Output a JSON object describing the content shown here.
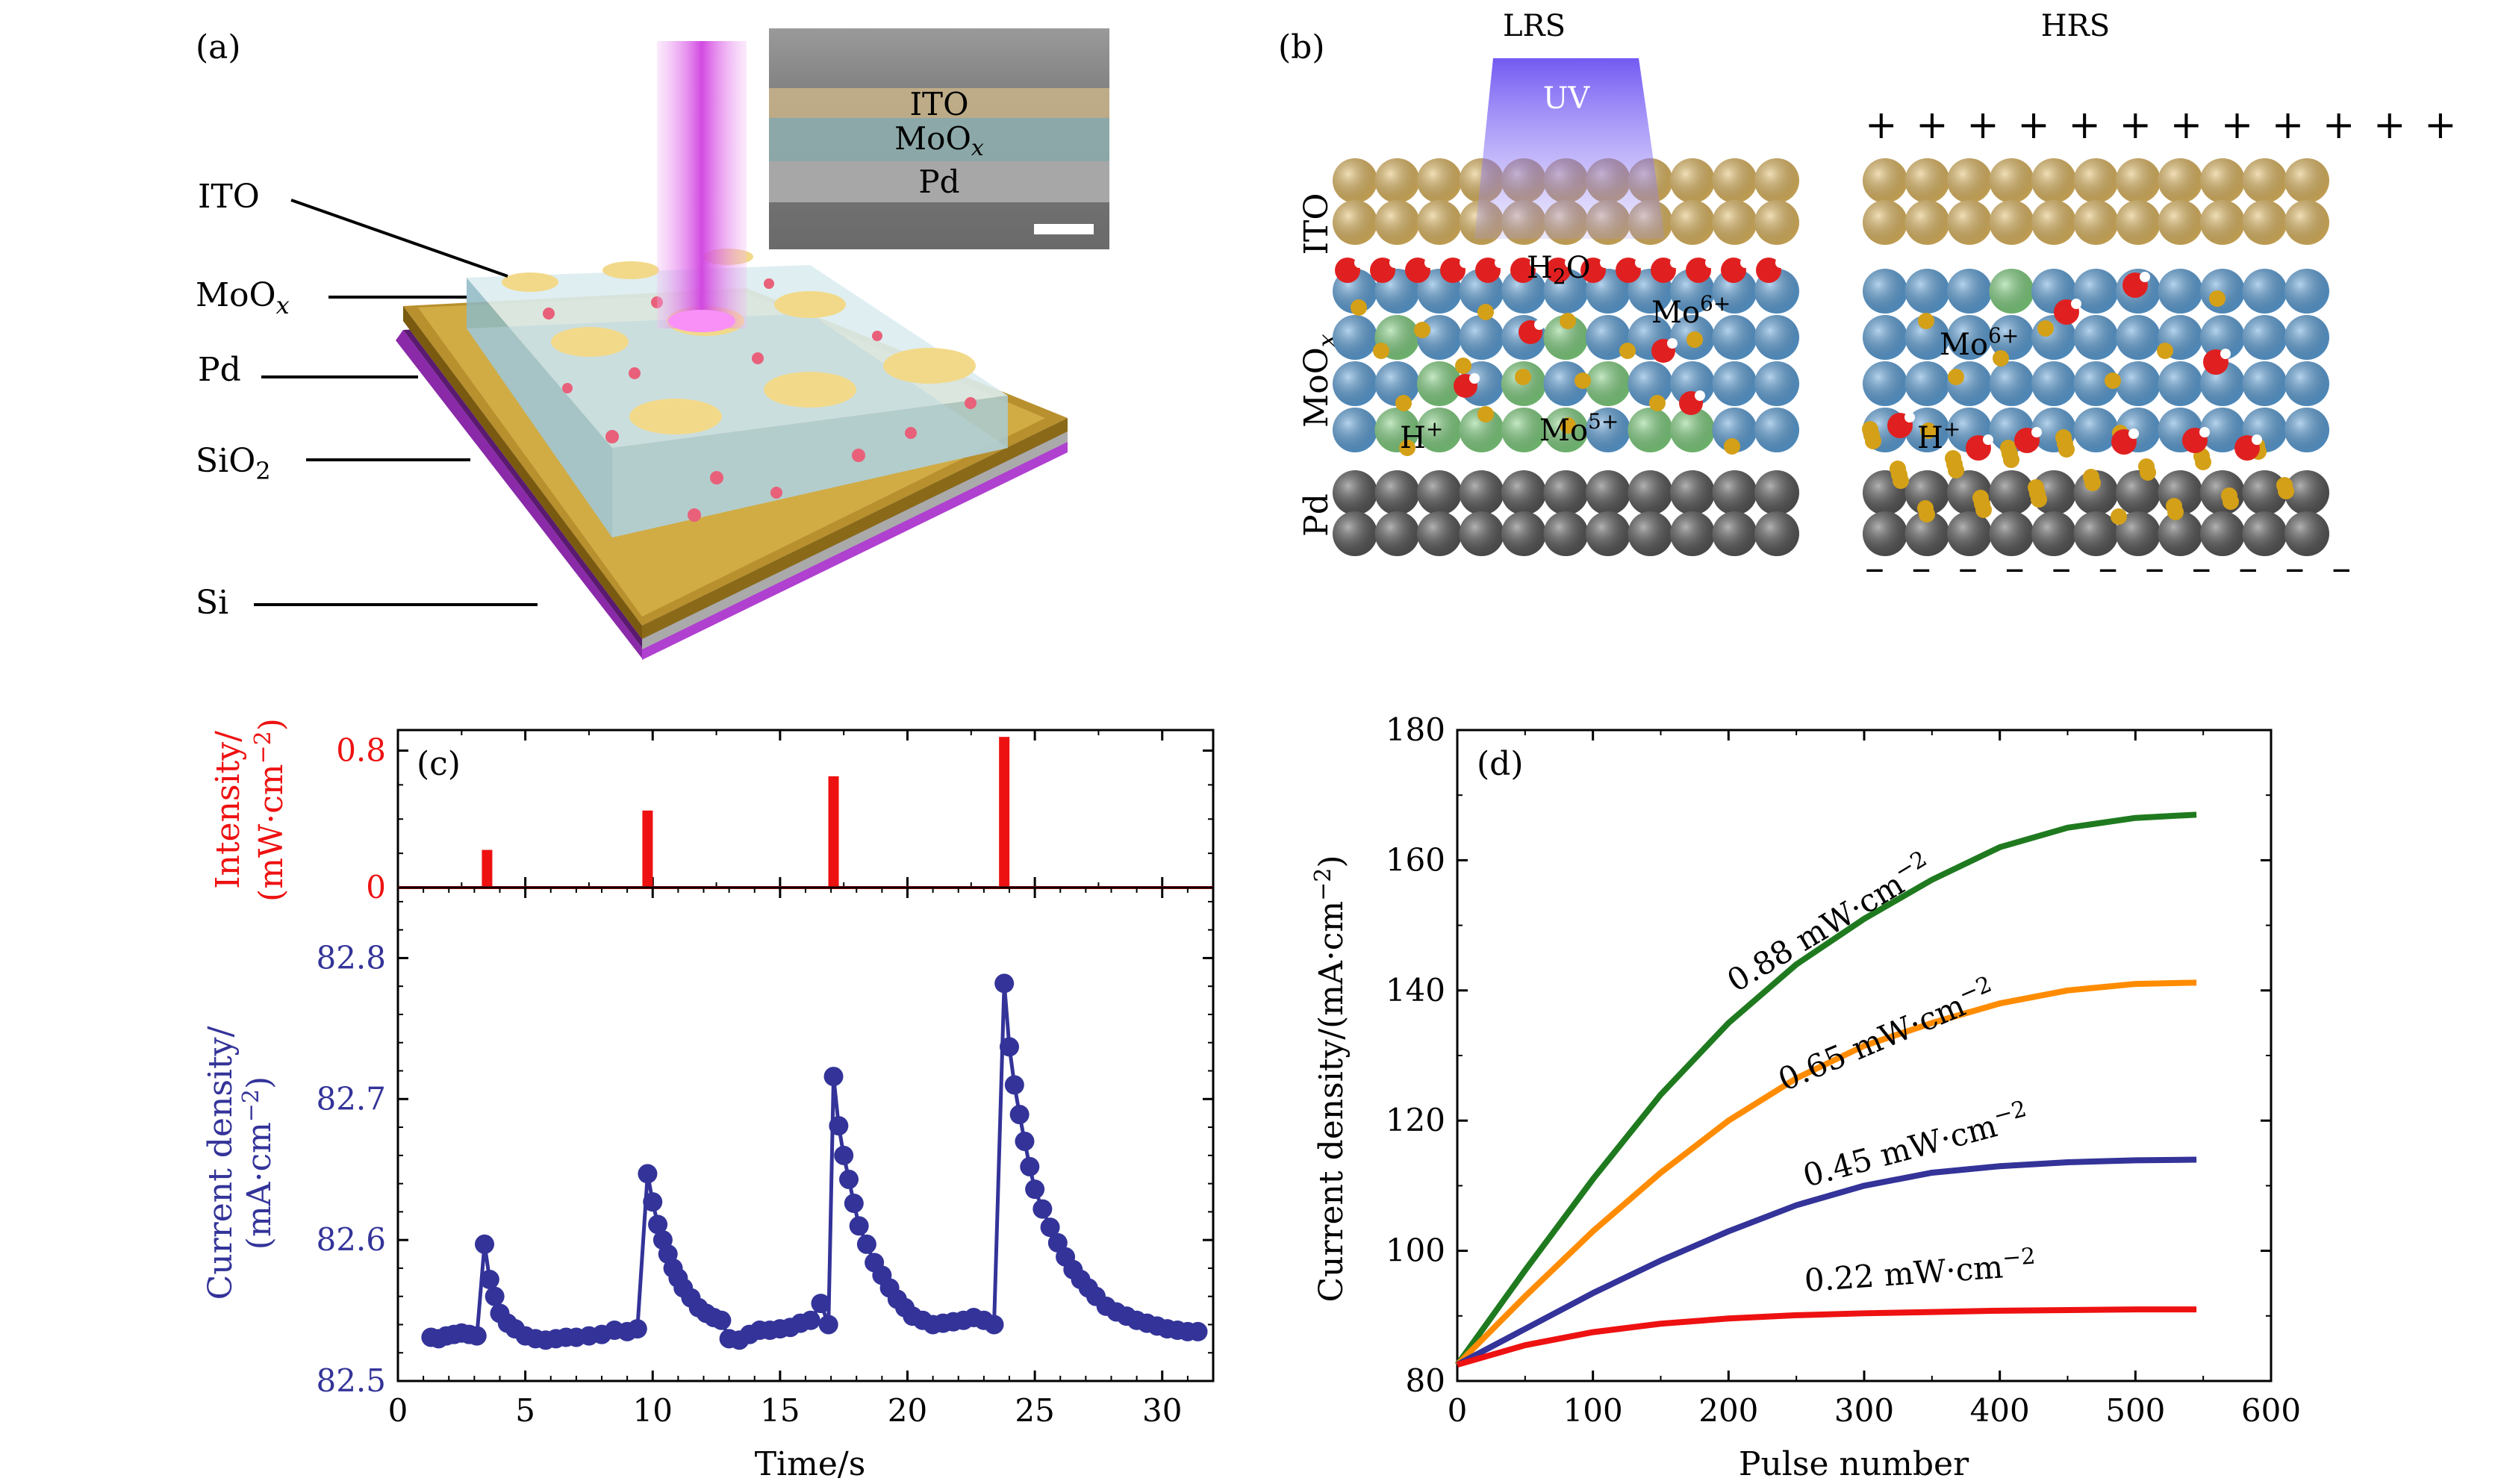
{
  "panel_a": {
    "label": "(a)",
    "layers": [
      "ITO",
      "MoO",
      "Pd",
      "SiO",
      "Si"
    ],
    "layer_subscripts": [
      "",
      "x",
      "",
      "2",
      ""
    ],
    "inset": {
      "labels": [
        "ITO",
        "MoO",
        "Pd"
      ],
      "subscripts": [
        "",
        "x",
        ""
      ]
    },
    "colors": {
      "ito": "#f2d98a",
      "moox": "#b8d4e0",
      "pd": "#b08a28",
      "si": "#9b30c0",
      "laser": "#e070e8"
    }
  },
  "panel_b": {
    "label": "(b)",
    "lrs_label": "LRS",
    "hrs_label": "HRS",
    "uv_label": "UV",
    "layer_labels": [
      "ITO",
      "MoO",
      "Pd"
    ],
    "moox_subscript": "x",
    "annotations": {
      "h2o": "H",
      "h2o_sub": "2",
      "h2o_tail": "O",
      "mo6_lrs": "Mo",
      "mo6_sup": "6+",
      "h_plus_lrs": "H",
      "h_plus_sup": "+",
      "mo5": "Mo",
      "mo5_sup": "5+",
      "mo6_hrs": "Mo",
      "h_plus_hrs": "H"
    },
    "hrs_top_charge": "+ + + + + + + + + + + +",
    "hrs_bottom_charge": "– – – – – – – – – – –",
    "colors": {
      "ito": "#e0b860",
      "mo6": "#5b9fd8",
      "mo5": "#7fd07f",
      "oxygen": "#e02020",
      "hydrogen": "#d4a017",
      "pd": "#555555",
      "uv": "#7a5cf0"
    }
  },
  "panel_c": {
    "label": "(c)",
    "top_ylabel_1": "Intensity/",
    "top_ylabel_2": "(mW·cm",
    "top_ylabel_sup": "−2",
    "top_ylabel_close": ")",
    "bottom_ylabel_1": "Current density/",
    "bottom_ylabel_2": "(mA·cm",
    "bottom_ylabel_sup": "−2",
    "bottom_ylabel_close": ")",
    "xlabel": "Time/s",
    "colors": {
      "intensity": "#ee1111",
      "current": "#333399"
    }
  },
  "panel_d": {
    "label": "(d)",
    "xlabel": "Pulse number",
    "ylabel": "Current density/(mA·cm",
    "ylabel_sup": "−2",
    "ylabel_close": ")",
    "unit_prefix": " mW·cm",
    "unit_sup": "−2"
  },
  "chart_data": [
    {
      "type": "bar",
      "panel": "c-top",
      "ylabel": "Intensity/(mW·cm−2)",
      "ylim": [
        0,
        0.92
      ],
      "yticks": [
        0,
        0.8
      ],
      "xlim": [
        0,
        32
      ],
      "x": [
        3.5,
        9.8,
        17.1,
        23.8
      ],
      "values": [
        0.22,
        0.45,
        0.65,
        0.88
      ],
      "color": "#ee1111"
    },
    {
      "type": "line",
      "panel": "c-bottom",
      "xlabel": "Time/s",
      "ylabel": "Current density/(mA·cm−2)",
      "xlim": [
        0,
        32
      ],
      "ylim": [
        82.5,
        82.85
      ],
      "xticks": [
        0,
        5,
        10,
        15,
        20,
        25,
        30
      ],
      "yticks": [
        82.5,
        82.6,
        82.7,
        82.8
      ],
      "x": [
        1.3,
        1.6,
        1.9,
        2.2,
        2.5,
        2.8,
        3.1,
        3.4,
        3.6,
        3.8,
        4.0,
        4.3,
        4.6,
        5.0,
        5.4,
        5.8,
        6.2,
        6.6,
        7.0,
        7.5,
        8.0,
        8.5,
        9.0,
        9.4,
        9.8,
        10.0,
        10.2,
        10.4,
        10.6,
        10.8,
        11.0,
        11.2,
        11.5,
        11.8,
        12.1,
        12.4,
        12.7,
        13.0,
        13.4,
        13.8,
        14.2,
        14.6,
        15.0,
        15.4,
        15.8,
        16.2,
        16.6,
        16.9,
        17.1,
        17.3,
        17.5,
        17.7,
        17.9,
        18.1,
        18.4,
        18.7,
        19.0,
        19.3,
        19.6,
        19.9,
        20.2,
        20.6,
        21.0,
        21.4,
        21.8,
        22.2,
        22.6,
        23.0,
        23.4,
        23.8,
        24.0,
        24.2,
        24.4,
        24.6,
        24.8,
        25.0,
        25.3,
        25.6,
        25.9,
        26.2,
        26.5,
        26.8,
        27.1,
        27.4,
        27.8,
        28.2,
        28.6,
        29.0,
        29.4,
        29.8,
        30.2,
        30.6,
        31.0,
        31.4
      ],
      "values": [
        82.531,
        82.53,
        82.532,
        82.533,
        82.534,
        82.533,
        82.532,
        82.597,
        82.572,
        82.56,
        82.548,
        82.541,
        82.537,
        82.532,
        82.53,
        82.529,
        82.53,
        82.531,
        82.531,
        82.532,
        82.533,
        82.536,
        82.535,
        82.537,
        82.647,
        82.627,
        82.611,
        82.6,
        82.59,
        82.58,
        82.573,
        82.566,
        82.559,
        82.552,
        82.548,
        82.545,
        82.543,
        82.53,
        82.529,
        82.533,
        82.536,
        82.536,
        82.537,
        82.538,
        82.541,
        82.543,
        82.555,
        82.54,
        82.716,
        82.681,
        82.66,
        82.643,
        82.626,
        82.61,
        82.597,
        82.584,
        82.575,
        82.566,
        82.558,
        82.552,
        82.546,
        82.543,
        82.54,
        82.541,
        82.542,
        82.543,
        82.545,
        82.543,
        82.54,
        82.782,
        82.737,
        82.71,
        82.689,
        82.67,
        82.652,
        82.636,
        82.622,
        82.609,
        82.598,
        82.588,
        82.579,
        82.572,
        82.566,
        82.56,
        82.553,
        82.549,
        82.546,
        82.543,
        82.541,
        82.539,
        82.537,
        82.536,
        82.535,
        82.535
      ],
      "color": "#333399"
    },
    {
      "type": "line",
      "panel": "d",
      "xlabel": "Pulse number",
      "ylabel": "Current density/(mA·cm−2)",
      "xlim": [
        0,
        600
      ],
      "ylim": [
        80,
        180
      ],
      "xticks": [
        0,
        100,
        200,
        300,
        400,
        500,
        600
      ],
      "yticks": [
        80,
        100,
        120,
        140,
        160,
        180
      ],
      "x": [
        0,
        50,
        100,
        150,
        200,
        250,
        300,
        350,
        400,
        450,
        500,
        545
      ],
      "series": [
        {
          "name": "0.88",
          "color": "#1f7a1f",
          "values": [
            82.5,
            97,
            111,
            124,
            135,
            144,
            151,
            157,
            162,
            165,
            166.5,
            167
          ]
        },
        {
          "name": "0.65",
          "color": "#ff8c00",
          "values": [
            82.5,
            93,
            103,
            112,
            120,
            126.5,
            131.5,
            135,
            138,
            140,
            141,
            141.2
          ]
        },
        {
          "name": "0.45",
          "color": "#333399",
          "values": [
            82.5,
            88,
            93.5,
            98.5,
            103,
            107,
            110,
            112,
            113,
            113.6,
            113.9,
            114
          ]
        },
        {
          "name": "0.22",
          "color": "#ee1111",
          "values": [
            82.5,
            85.5,
            87.5,
            88.8,
            89.6,
            90.1,
            90.4,
            90.6,
            90.8,
            90.9,
            91,
            91
          ]
        }
      ]
    }
  ]
}
